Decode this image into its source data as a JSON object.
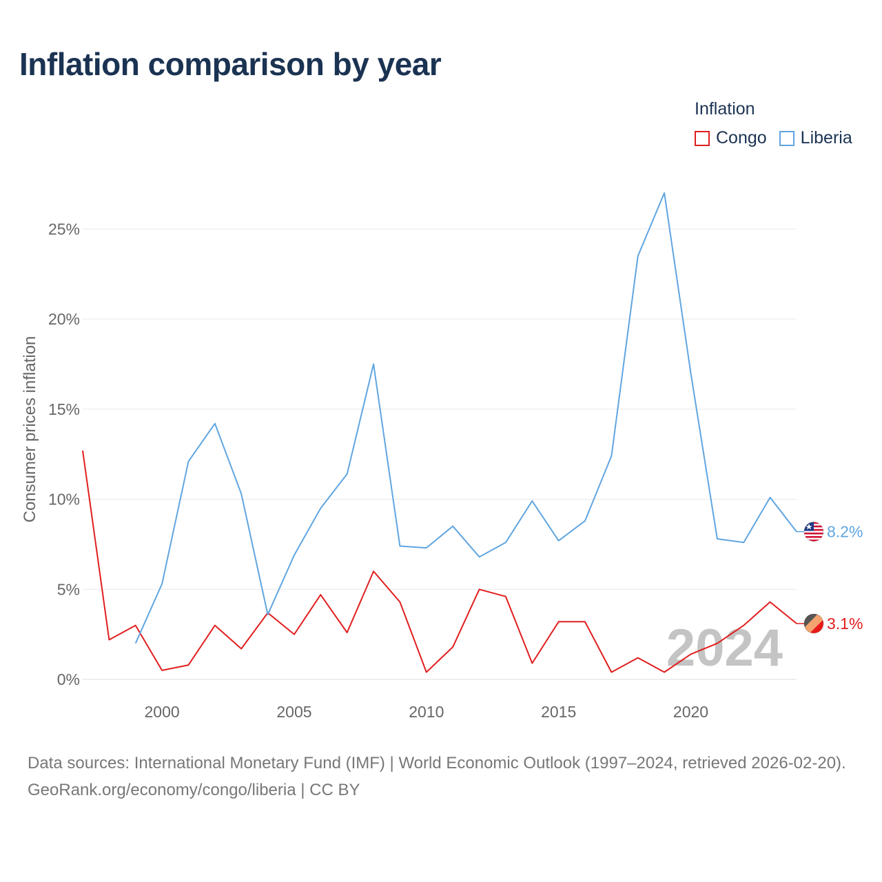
{
  "page": {
    "title": "Inflation comparison by year",
    "footer_source": "Data sources: International Monetary Fund (IMF) | World Economic Outlook (1997–2024, retrieved 2026-02-20).",
    "footer_credit": "GeoRank.org/economy/congo/liberia | CC BY"
  },
  "legend": {
    "title": "Inflation",
    "items": [
      {
        "name": "Congo",
        "color": "#e11d1d"
      },
      {
        "name": "Liberia",
        "color": "#5fa5e0"
      }
    ]
  },
  "chart_data": {
    "type": "line",
    "ylabel": "Consumer prices inflation",
    "xlabel": "",
    "xlim": [
      1997,
      2024
    ],
    "ylim": [
      0,
      27
    ],
    "x_ticks": [
      "2000",
      "2005",
      "2010",
      "2015",
      "2020"
    ],
    "y_ticks": [
      "0%",
      "5%",
      "10%",
      "15%",
      "20%",
      "25%"
    ],
    "year_watermark": "2024",
    "series": [
      {
        "name": "Congo",
        "color": "#e11d1d",
        "end_label": "3.1%",
        "x": [
          1997,
          1998,
          1999,
          2000,
          2001,
          2002,
          2003,
          2004,
          2005,
          2006,
          2007,
          2008,
          2009,
          2010,
          2011,
          2012,
          2013,
          2014,
          2015,
          2016,
          2017,
          2018,
          2019,
          2020,
          2021,
          2022,
          2023,
          2024
        ],
        "values": [
          12.7,
          2.2,
          3.0,
          0.5,
          0.8,
          3.0,
          1.7,
          3.7,
          2.5,
          4.7,
          2.6,
          6.0,
          4.3,
          0.4,
          1.8,
          5.0,
          4.6,
          0.9,
          3.2,
          3.2,
          0.4,
          1.2,
          0.4,
          1.4,
          2.0,
          3.0,
          4.3,
          3.1
        ]
      },
      {
        "name": "Liberia",
        "color": "#5fa5e0",
        "end_label": "8.2%",
        "x": [
          1999,
          2000,
          2001,
          2002,
          2003,
          2004,
          2005,
          2006,
          2007,
          2008,
          2009,
          2010,
          2011,
          2012,
          2013,
          2014,
          2015,
          2016,
          2017,
          2018,
          2019,
          2020,
          2021,
          2022,
          2023,
          2024
        ],
        "values": [
          2.0,
          5.3,
          12.1,
          14.2,
          10.3,
          3.6,
          6.9,
          9.5,
          11.4,
          17.5,
          7.4,
          7.3,
          8.5,
          6.8,
          7.6,
          9.9,
          7.7,
          8.8,
          12.4,
          23.5,
          27.0,
          17.0,
          7.8,
          7.6,
          10.1,
          8.2
        ]
      }
    ]
  }
}
